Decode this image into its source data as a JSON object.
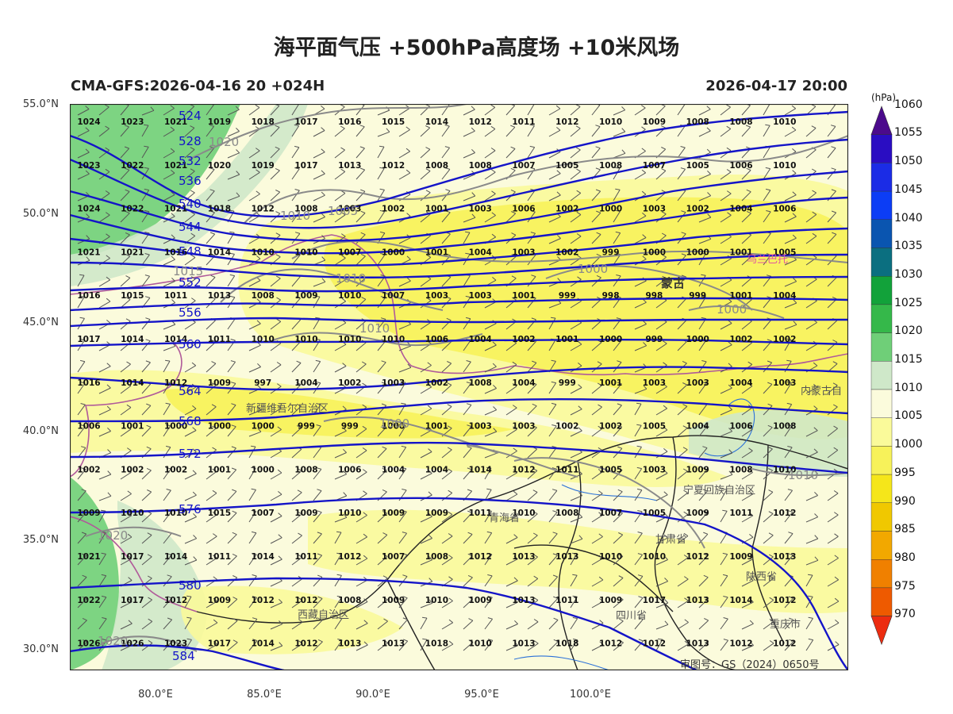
{
  "header": {
    "title": "海平面气压 +500hPa高度场 +10米风场",
    "model_run": "CMA-GFS:2026-04-16 20 +024H",
    "valid_time": "2026-04-17 20:00"
  },
  "axes": {
    "lat_labels": [
      "55.0°N",
      "50.0°N",
      "45.0°N",
      "40.0°N",
      "35.0°N",
      "30.0°N"
    ],
    "lon_labels": [
      "80.0°E",
      "85.0°E",
      "90.0°E",
      "95.0°E",
      "100.0°E"
    ]
  },
  "colorbar": {
    "unit": "(hPa)",
    "levels": [
      "1060",
      "1055",
      "1050",
      "1045",
      "1040",
      "1035",
      "1030",
      "1025",
      "1020",
      "1015",
      "1010",
      "1005",
      "1000",
      "995",
      "990",
      "985",
      "980",
      "975",
      "970"
    ],
    "colors": [
      "#4b0a8c",
      "#2a0dc2",
      "#1b2ce6",
      "#0c3df5",
      "#0a55b0",
      "#0b6f80",
      "#12a23a",
      "#35b84a",
      "#6fcf78",
      "#cfe8c9",
      "#fbfbdc",
      "#fafa9a",
      "#f7f25a",
      "#f5e61a",
      "#f0c800",
      "#f2a800",
      "#f08000",
      "#ee5a00",
      "#ec2c10"
    ]
  },
  "map": {
    "isobar_labels": [
      "1020",
      "1010",
      "1005",
      "1010",
      "1015",
      "1000",
      "1010",
      "1000",
      "1000",
      "1020",
      "1020",
      "1010"
    ],
    "height_labels": [
      "524",
      "528",
      "532",
      "536",
      "540",
      "544",
      "548",
      "552",
      "556",
      "560",
      "564",
      "568",
      "572",
      "576",
      "580",
      "584"
    ],
    "place_names": [
      "蒙古",
      "新疆维吾尔自治区",
      "青海省",
      "甘肃省",
      "宁夏回族自治区",
      "陕西省",
      "四川省",
      "西藏自治区",
      "重庆市",
      "内蒙古自",
      "乌兰巴托"
    ],
    "station_rows": [
      [
        "1024",
        "1023",
        "1021",
        "1019",
        "1018",
        "1017",
        "1016",
        "1015",
        "1014",
        "1012",
        "1011",
        "1012",
        "1010",
        "1009",
        "1008",
        "1008",
        "1010"
      ],
      [
        "1023",
        "1022",
        "1021",
        "1020",
        "1019",
        "1017",
        "1013",
        "1012",
        "1008",
        "1008",
        "1007",
        "1005",
        "1008",
        "1007",
        "1005",
        "1006",
        "1010"
      ],
      [
        "1024",
        "1022",
        "1021",
        "1018",
        "1012",
        "1008",
        "1003",
        "1002",
        "1001",
        "1003",
        "1006",
        "1002",
        "1000",
        "1003",
        "1002",
        "1004",
        "1006"
      ],
      [
        "1021",
        "1021",
        "1016",
        "1014",
        "1010",
        "1010",
        "1007",
        "1000",
        "1001",
        "1004",
        "1003",
        "1002",
        "999",
        "1000",
        "1000",
        "1001",
        "1005"
      ],
      [
        "1016",
        "1015",
        "1011",
        "1013",
        "1008",
        "1009",
        "1010",
        "1007",
        "1003",
        "1003",
        "1001",
        "999",
        "998",
        "998",
        "999",
        "1001",
        "1004"
      ],
      [
        "1017",
        "1014",
        "1014",
        "1011",
        "1010",
        "1010",
        "1010",
        "1010",
        "1006",
        "1004",
        "1002",
        "1001",
        "1000",
        "999",
        "1000",
        "1002",
        "1002"
      ],
      [
        "1016",
        "1014",
        "1012",
        "1009",
        "997",
        "1004",
        "1002",
        "1003",
        "1002",
        "1008",
        "1004",
        "999",
        "1001",
        "1003",
        "1003",
        "1004",
        "1003"
      ],
      [
        "1006",
        "1001",
        "1000",
        "1000",
        "1000",
        "999",
        "999",
        "1000",
        "1001",
        "1003",
        "1003",
        "1002",
        "1002",
        "1005",
        "1004",
        "1006",
        "1008"
      ],
      [
        "1002",
        "1002",
        "1002",
        "1001",
        "1000",
        "1008",
        "1006",
        "1004",
        "1004",
        "1014",
        "1012",
        "1011",
        "1005",
        "1003",
        "1009",
        "1008",
        "1010"
      ],
      [
        "1009",
        "1010",
        "1010",
        "1015",
        "1007",
        "1009",
        "1010",
        "1009",
        "1009",
        "1011",
        "1010",
        "1008",
        "1007",
        "1005",
        "1009",
        "1011",
        "1012"
      ],
      [
        "1021",
        "1017",
        "1014",
        "1011",
        "1014",
        "1011",
        "1012",
        "1007",
        "1008",
        "1012",
        "1013",
        "1013",
        "1010",
        "1010",
        "1012",
        "1009",
        "1013"
      ],
      [
        "1022",
        "1017",
        "1012",
        "1009",
        "1012",
        "1012",
        "1008",
        "1009",
        "1010",
        "1009",
        "1013",
        "1011",
        "1009",
        "1017",
        "1013",
        "1014",
        "1012"
      ],
      [
        "1026",
        "1026",
        "1023",
        "1017",
        "1014",
        "1012",
        "1013",
        "1013",
        "1018",
        "1010",
        "1013",
        "1018",
        "1012",
        "1012",
        "1013",
        "1012",
        "1012"
      ]
    ]
  },
  "footer": {
    "credit": "审图号：GS（2024）0650号",
    "watermark": "微博 @..."
  }
}
